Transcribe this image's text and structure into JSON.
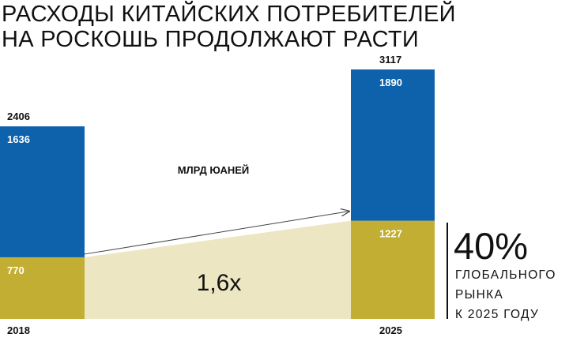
{
  "title_line1": "РАСХОДЫ КИТАЙСКИХ ПОТРЕБИТЕЛЕЙ",
  "title_line2": "НА РОСКОШЬ ПРОДОЛЖАЮТ РАСТИ",
  "unit_label": "МЛРД ЮАНЕЙ",
  "growth_label": "1,6x",
  "share": {
    "value": "40%",
    "line1": "ГЛОБАЛЬНОГО",
    "line2": "РЫНКА",
    "line3": "К 2025 ГОДУ"
  },
  "colors": {
    "blue": "#0d62ab",
    "gold": "#c2ae33",
    "band": "#ede6c2",
    "divider": "#111111"
  },
  "chart_data": {
    "type": "bar",
    "stacked": true,
    "categories": [
      "2018",
      "2025"
    ],
    "series": [
      {
        "values": [
          770,
          1227
        ],
        "color": "#c2ae33"
      },
      {
        "values": [
          1636,
          1890
        ],
        "color": "#0d62ab"
      }
    ],
    "totals": [
      2406,
      3117
    ],
    "ylim": [
      0,
      3117
    ],
    "grid": false
  }
}
